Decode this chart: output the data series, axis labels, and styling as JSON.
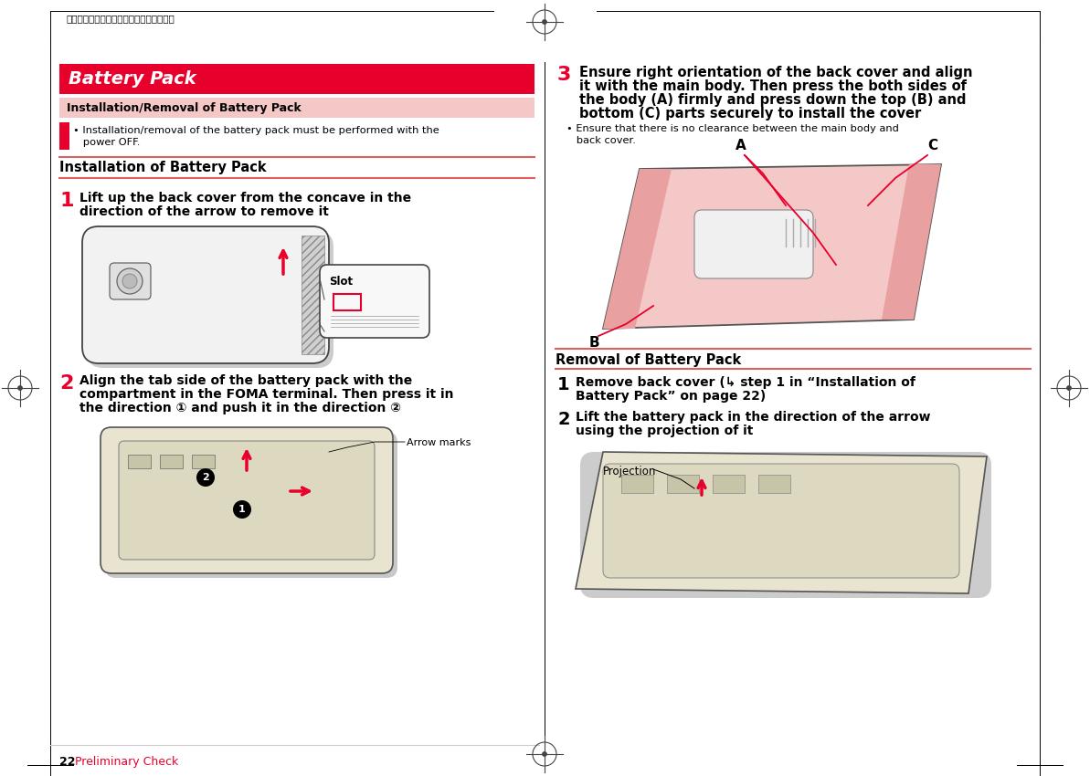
{
  "page_bg": "#ffffff",
  "red_color": "#e8002d",
  "pink_bg": "#f5c0c0",
  "subheader_bg": "#f0b8b8",
  "header_text": "２０１１年５月１２日　午後１０時３４分",
  "footer_page": "22",
  "footer_text": " Preliminary Check",
  "title_battery": "Battery Pack",
  "title_install_removal": "  Installation/Removal of Battery Pack",
  "bullet_install_line1": "• Installation/removal of the battery pack must be performed with the",
  "bullet_install_line2": "   power OFF.",
  "section_install": "Installation of Battery Pack",
  "step1_line1": "Lift up the back cover from the concave in the",
  "step1_line2": "direction of the arrow to remove it",
  "step2_line1": "Align the tab side of the battery pack with the",
  "step2_line2": "compartment in the FOMA terminal. Then press it in",
  "step2_line3": "the direction ① and push it in the direction ②",
  "label_slot": "Slot",
  "label_arrow_marks": "Arrow marks",
  "step3_line1": "Ensure right orientation of the back cover and align",
  "step3_line2": "it with the main body. Then press the both sides of",
  "step3_line3": "the body (A) firmly and press down the top (B) and",
  "step3_line4": "bottom (C) parts securely to install the cover",
  "bullet_step3_line1": "• Ensure that there is no clearance between the main body and",
  "bullet_step3_line2": "   back cover.",
  "section_removal": "Removal of Battery Pack",
  "rem1_line1": "Remove back cover (↳ step 1 in “Installation of",
  "rem1_line2": "Battery Pack” on page 22)",
  "rem2_line1": "Lift the battery pack in the direction of the arrow",
  "rem2_line2": "using the projection of it",
  "label_projection": "Projection",
  "label_A": "A",
  "label_B": "B",
  "label_C": "C",
  "phone_outline": "#333333",
  "phone_fill": "#f8f8f8",
  "phone_shadow": "#cccccc",
  "pink_phone": "#f5b8b8"
}
